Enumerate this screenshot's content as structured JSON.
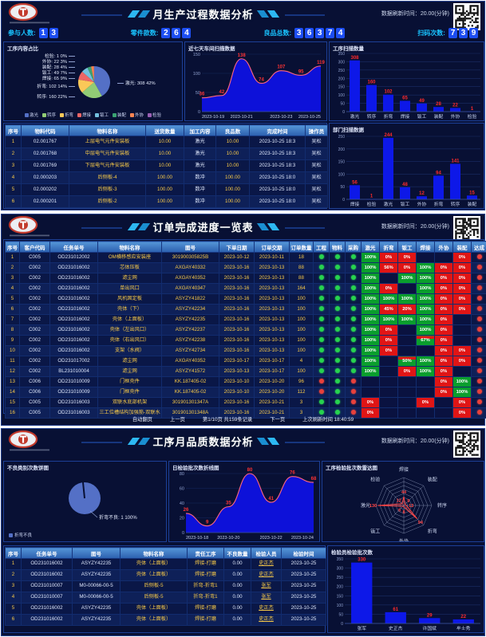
{
  "refresh": {
    "label": "数据刷新时间：",
    "value": "20.00(分钟)"
  },
  "panel1": {
    "title": "月生产过程数据分析",
    "stats": [
      {
        "label": "参与人数:",
        "digits": [
          "1",
          "3"
        ]
      },
      {
        "label": "零件款数:",
        "digits": [
          "2",
          "6",
          "4"
        ]
      },
      {
        "label": "良品总数:",
        "digits": [
          "3",
          "6",
          "3",
          "7",
          "4"
        ]
      },
      {
        "label": "扫码次数:",
        "digits": [
          "7",
          "3",
          "9"
        ]
      }
    ],
    "sections": {
      "pie": "工序内容占比",
      "area": "近七天车间扫描数据",
      "bar1": "工序扫描数量",
      "bar2": "部门扫描数据"
    },
    "table": {
      "headers": [
        "序号",
        "物料代码",
        "物料名称",
        "送货数量",
        "加工内容",
        "良品数",
        "完成时间",
        "操作员"
      ],
      "rows": [
        [
          "1",
          "02.001767",
          "上层电气元件安装板",
          "10.00",
          "激光",
          "10.00",
          "2023-10-25 18:3",
          "吴松"
        ],
        [
          "2",
          "02.001768",
          "中层电气元件安装板",
          "10.00",
          "激光",
          "10.00",
          "2023-10-25 18:3",
          "吴松"
        ],
        [
          "3",
          "02.001769",
          "下层电气元件安装板",
          "10.00",
          "激光",
          "10.00",
          "2023-10-25 18:3",
          "吴松"
        ],
        [
          "4",
          "02.000203",
          "后侧板-4",
          "100.00",
          "数冲",
          "100.00",
          "2023-10-25 18:0",
          "吴松"
        ],
        [
          "5",
          "02.000202",
          "后侧板-3",
          "100.00",
          "数冲",
          "100.00",
          "2023-10-25 18:0",
          "吴松"
        ],
        [
          "6",
          "02.000201",
          "后侧板-2",
          "100.00",
          "数冲",
          "100.00",
          "2023-10-25 18:0",
          "吴松"
        ]
      ]
    }
  },
  "panel2": {
    "title": "订单完成进度一览表",
    "table": {
      "headers": [
        "序号",
        "客户代码",
        "任务单号",
        "物料名称",
        "图号",
        "下单日期",
        "订单交期",
        "订单数量",
        "工程",
        "物料",
        "采购",
        "激光",
        "折弯",
        "钣工",
        "焊接",
        "外协",
        "装配",
        "达成"
      ],
      "rows": [
        {
          "c": [
            "1",
            "C005",
            "OD231012002",
            "OM横移感应安装座",
            "301900305825B",
            "2023-10-12",
            "2023-10-11",
            "18"
          ],
          "dots": [
            "g",
            "g",
            "g"
          ],
          "steps": [
            [
              "100%",
              "g"
            ],
            [
              "0%",
              "r"
            ],
            [
              "0%",
              "r"
            ],
            [
              "",
              ""
            ],
            [
              "",
              ""
            ],
            [
              "0%",
              "r"
            ]
          ],
          "done": "r"
        },
        {
          "c": [
            "2",
            "C002",
            "OD231016002",
            "芯体压板",
            "AXGAY40332",
            "2023-10-16",
            "2023-10-13",
            "88"
          ],
          "dots": [
            "g",
            "g",
            "g"
          ],
          "steps": [
            [
              "100%",
              "g"
            ],
            [
              "56%",
              "r"
            ],
            [
              "0%",
              "r"
            ],
            [
              "100%",
              "g"
            ],
            [
              "0%",
              "r"
            ],
            [
              "0%",
              "r"
            ]
          ],
          "done": "r"
        },
        {
          "c": [
            "3",
            "C002",
            "OD231016002",
            "滤尘网",
            "AXGAY40352",
            "2023-10-16",
            "2023-10-13",
            "88"
          ],
          "dots": [
            "g",
            "g",
            "g"
          ],
          "steps": [
            [
              "100%",
              "g"
            ],
            [
              "",
              ""
            ],
            [
              "100%",
              "g"
            ],
            [
              "100%",
              "g"
            ],
            [
              "0%",
              "r"
            ],
            [
              "0%",
              "r"
            ]
          ],
          "done": "r"
        },
        {
          "c": [
            "4",
            "C002",
            "OD231016002",
            "单出风口",
            "AXGAY40347",
            "2023-10-16",
            "2023-10-13",
            "164"
          ],
          "dots": [
            "g",
            "g",
            "g"
          ],
          "steps": [
            [
              "100%",
              "g"
            ],
            [
              "0%",
              "r"
            ],
            [
              "",
              ""
            ],
            [
              "100%",
              "g"
            ],
            [
              "0%",
              "r"
            ],
            [
              "0%",
              "r"
            ]
          ],
          "done": "r"
        },
        {
          "c": [
            "5",
            "C002",
            "OD231016002",
            "风机固定板",
            "ASYZY41822",
            "2023-10-16",
            "2023-10-13",
            "100"
          ],
          "dots": [
            "g",
            "g",
            "g"
          ],
          "steps": [
            [
              "100%",
              "g"
            ],
            [
              "100%",
              "g"
            ],
            [
              "100%",
              "g"
            ],
            [
              "100%",
              "g"
            ],
            [
              "0%",
              "r"
            ],
            [
              "0%",
              "r"
            ]
          ],
          "done": "r"
        },
        {
          "c": [
            "6",
            "C002",
            "OD231016002",
            "壳体（下）",
            "ASYZY42234",
            "2023-10-16",
            "2023-10-13",
            "100"
          ],
          "dots": [
            "g",
            "g",
            "g"
          ],
          "steps": [
            [
              "100%",
              "g"
            ],
            [
              "45%",
              "r"
            ],
            [
              "20%",
              "r"
            ],
            [
              "100%",
              "g"
            ],
            [
              "0%",
              "r"
            ],
            [
              "0%",
              "r"
            ]
          ],
          "done": "r"
        },
        {
          "c": [
            "7",
            "C002",
            "OD231016002",
            "壳体（上面板）",
            "ASYZY42235",
            "2023-10-16",
            "2023-10-13",
            "100"
          ],
          "dots": [
            "g",
            "g",
            "g"
          ],
          "steps": [
            [
              "100%",
              "g"
            ],
            [
              "100%",
              "g"
            ],
            [
              "100%",
              "g"
            ],
            [
              "100%",
              "g"
            ],
            [
              "0%",
              "r"
            ],
            [
              "",
              ""
            ]
          ],
          "done": "r"
        },
        {
          "c": [
            "8",
            "C002",
            "OD231016002",
            "壳体（左出风口）",
            "ASYZY42237",
            "2023-10-16",
            "2023-10-13",
            "100"
          ],
          "dots": [
            "g",
            "g",
            "g"
          ],
          "steps": [
            [
              "100%",
              "g"
            ],
            [
              "0%",
              "r"
            ],
            [
              "",
              ""
            ],
            [
              "100%",
              "g"
            ],
            [
              "0%",
              "r"
            ],
            [
              "",
              ""
            ]
          ],
          "done": "r"
        },
        {
          "c": [
            "9",
            "C002",
            "OD231016002",
            "壳体（右出风口）",
            "ASYZY42238",
            "2023-10-16",
            "2023-10-13",
            "100"
          ],
          "dots": [
            "g",
            "g",
            "g"
          ],
          "steps": [
            [
              "100%",
              "g"
            ],
            [
              "0%",
              "r"
            ],
            [
              "",
              ""
            ],
            [
              "67%",
              "s"
            ],
            [
              "0%",
              "r"
            ],
            [
              "",
              ""
            ]
          ],
          "done": "r"
        },
        {
          "c": [
            "10",
            "C002",
            "OD231016002",
            "支架（水阀）",
            "ASYZY42734",
            "2023-10-16",
            "2023-10-13",
            "100"
          ],
          "dots": [
            "g",
            "g",
            "g"
          ],
          "steps": [
            [
              "100%",
              "g"
            ],
            [
              "0%",
              "r"
            ],
            [
              "",
              ""
            ],
            [
              "",
              ""
            ],
            [
              "0%",
              "r"
            ],
            [
              "0%",
              "r"
            ]
          ],
          "done": "r"
        },
        {
          "c": [
            "11",
            "C002",
            "OD231017002",
            "滤尘网",
            "AXGAY40352",
            "2023-10-17",
            "2023-10-17",
            "4"
          ],
          "dots": [
            "g",
            "g",
            "g"
          ],
          "steps": [
            [
              "100%",
              "g"
            ],
            [
              "",
              ""
            ],
            [
              "50%",
              "s"
            ],
            [
              "100%",
              "g"
            ],
            [
              "0%",
              "r"
            ],
            [
              "0%",
              "r"
            ]
          ],
          "done": "r"
        },
        {
          "c": [
            "12",
            "C002",
            "BL231010004",
            "滤尘网",
            "ASYZY41572",
            "2023-10-13",
            "2023-10-17",
            "100"
          ],
          "dots": [
            "g",
            "g",
            "g"
          ],
          "steps": [
            [
              "100%",
              "g"
            ],
            [
              "",
              ""
            ],
            [
              "0%",
              "r"
            ],
            [
              "100%",
              "g"
            ],
            [
              "0%",
              "r"
            ],
            [
              "",
              ""
            ]
          ],
          "done": "r"
        },
        {
          "c": [
            "13",
            "C006",
            "OD231010009",
            "门框壳件",
            "KK.187405-02",
            "2023-10-10",
            "2023-10-20",
            "96"
          ],
          "dots": [
            "r",
            "g",
            "r"
          ],
          "steps": [
            [
              "",
              ""
            ],
            [
              "",
              ""
            ],
            [
              "",
              ""
            ],
            [
              "",
              ""
            ],
            [
              "0%",
              "r"
            ],
            [
              "100%",
              "g"
            ]
          ],
          "done": "r"
        },
        {
          "c": [
            "14",
            "C006",
            "OD231010009",
            "门框壳件",
            "KK.187405-02",
            "2023-10-10",
            "2023-10-20",
            "112"
          ],
          "dots": [
            "r",
            "g",
            "r"
          ],
          "steps": [
            [
              "",
              ""
            ],
            [
              "",
              ""
            ],
            [
              "",
              ""
            ],
            [
              "",
              ""
            ],
            [
              "0%",
              "r"
            ],
            [
              "100%",
              "g"
            ]
          ],
          "done": "r"
        },
        {
          "c": [
            "15",
            "C005",
            "OD231016003",
            "双联水底部机架",
            "301901301347A",
            "2023-10-16",
            "2023-10-21",
            "3"
          ],
          "dots": [
            "g",
            "g",
            "r"
          ],
          "steps": [
            [
              "0%",
              "r"
            ],
            [
              "",
              ""
            ],
            [
              "",
              ""
            ],
            [
              "0%",
              "r"
            ],
            [
              "",
              ""
            ],
            [
              "0%",
              "r"
            ]
          ],
          "done": "r"
        },
        {
          "c": [
            "16",
            "C005",
            "OD231016003",
            "三工位槽结构加强筋-双联水",
            "301901301348A",
            "2023-10-16",
            "2023-10-21",
            "3"
          ],
          "dots": [
            "g",
            "g",
            "r"
          ],
          "steps": [
            [
              "0%",
              "r"
            ],
            [
              "",
              ""
            ],
            [
              "",
              ""
            ],
            [
              "",
              ""
            ],
            [
              "",
              ""
            ],
            [
              "0%",
              "r"
            ]
          ],
          "done": "r"
        }
      ],
      "footer": {
        "auto": "自动翻页",
        "prev": "上一页",
        "page": "第1/10页 共159条记录",
        "next": "下一页",
        "last_refresh": "上次刷新时间 18:40:59"
      }
    }
  },
  "panel3": {
    "title": "工序月品质数据分析",
    "sections": {
      "pie": "不良类别次数饼图",
      "line": "日检验批次数折线图",
      "radar": "工序检验批次数雷达图",
      "bar": "检验员检验批次数"
    },
    "table": {
      "headers": [
        "序号",
        "任务单号",
        "图号",
        "物料名称",
        "责任工序",
        "不良数量",
        "检验人员",
        "检验时间"
      ],
      "rows": [
        [
          "1",
          "OD231016002",
          "ASYZY42235",
          "壳体（上面板）",
          "焊接-打磨",
          "0.00",
          "史正杰",
          "2023-10-25"
        ],
        [
          "2",
          "OD231016002",
          "ASYZY42235",
          "壳体（上面板）",
          "焊接-打磨",
          "0.00",
          "史正杰",
          "2023-10-25"
        ],
        [
          "3",
          "OD231010007",
          "M0-00066-00-5",
          "后侧板-5",
          "折弯-折弯1",
          "0.00",
          "张军",
          "2023-10-25"
        ],
        [
          "4",
          "OD231010007",
          "M0-00066-00-5",
          "后侧板-5",
          "折弯-折弯1",
          "0.00",
          "张军",
          "2023-10-25"
        ],
        [
          "5",
          "OD231016002",
          "ASYZY42235",
          "壳体（上面板）",
          "焊接-打磨",
          "0.00",
          "史正杰",
          "2023-10-25"
        ],
        [
          "6",
          "OD231016002",
          "ASYZY42235",
          "壳体（上面板）",
          "焊接-打磨",
          "0.00",
          "史正杰",
          "2023-10-25"
        ]
      ]
    }
  },
  "chart_data": [
    {
      "id": "pie-process-share",
      "type": "pie",
      "title": "工序内容占比",
      "labels": [
        "激光",
        "转序",
        "折弯",
        "焊接",
        "钣工",
        "装配",
        "外协",
        "检验"
      ],
      "values": [
        308,
        160,
        102,
        65,
        49,
        28,
        22,
        1
      ],
      "percents": [
        "42%",
        "22%",
        "14%",
        "9%",
        "7%",
        "4%",
        "3%",
        "0%"
      ],
      "colors": [
        "#5470c6",
        "#91cc75",
        "#fac858",
        "#ee6666",
        "#73c0de",
        "#3ba272",
        "#fc8452",
        "#9a60b4"
      ],
      "legend_position": "bottom"
    },
    {
      "id": "area-week-scan",
      "type": "area",
      "title": "近七天车间扫描数据",
      "x": [
        "2023-10-19",
        "2023-10-20",
        "2023-10-21",
        "2023-10-22",
        "2023-10-23",
        "2023-10-24",
        "2023-10-25"
      ],
      "values": [
        36,
        42,
        138,
        74,
        107,
        95,
        119
      ],
      "x_label_idx": [
        0,
        2,
        4,
        6
      ],
      "ylim": [
        0,
        150
      ],
      "ystep": 50
    },
    {
      "id": "bar-process-scan",
      "type": "bar",
      "title": "工序扫描数量",
      "categories": [
        "激光",
        "转序",
        "折弯",
        "焊接",
        "钣工",
        "装配",
        "外协",
        "检验"
      ],
      "values": [
        308,
        160,
        102,
        65,
        49,
        28,
        22,
        1
      ],
      "ylim": [
        0,
        350
      ],
      "ystep": 50
    },
    {
      "id": "bar-dept-scan",
      "type": "bar",
      "title": "部门扫描数据",
      "categories": [
        "焊接",
        "检验",
        "激光",
        "钣工",
        "外协",
        "折弯",
        "转序",
        "装配"
      ],
      "values": [
        56,
        1,
        244,
        48,
        12,
        94,
        141,
        15
      ],
      "ylim": [
        0,
        250
      ],
      "ystep": 50
    },
    {
      "id": "pie-defect-share",
      "type": "pie",
      "title": "不良类别次数饼图",
      "labels": [
        "折弯不良"
      ],
      "values": [
        1
      ],
      "percents": [
        "100%"
      ],
      "colors": [
        "#5470c6"
      ]
    },
    {
      "id": "line-daily-inspection",
      "type": "area",
      "title": "日检验批次数折线图",
      "x": [
        "2023-10-18",
        "2023-10-19",
        "2023-10-20",
        "2023-10-21",
        "2023-10-22",
        "2023-10-23",
        "2023-10-24"
      ],
      "values": [
        26,
        9,
        35,
        80,
        41,
        76,
        68
      ],
      "x_label_idx": [
        0,
        2,
        4,
        6
      ],
      "ylim": [
        0,
        80
      ],
      "ystep": 20
    },
    {
      "id": "radar-process-inspection",
      "type": "radar",
      "title": "工序检验批次数雷达图",
      "axes": [
        "焊接",
        "装配",
        "转序",
        "折弯",
        "外协",
        "钣工",
        "激光",
        "检验"
      ],
      "values": [
        44,
        9,
        13,
        94,
        8,
        6,
        130,
        12
      ],
      "max": 140
    },
    {
      "id": "bar-inspector-batches",
      "type": "bar",
      "title": "检验员检验批次数",
      "categories": [
        "张军",
        "史正杰",
        "许国斌",
        "牟士秀"
      ],
      "values": [
        330,
        61,
        29,
        22
      ],
      "ylim": [
        0,
        350
      ],
      "ystep": 50
    }
  ]
}
